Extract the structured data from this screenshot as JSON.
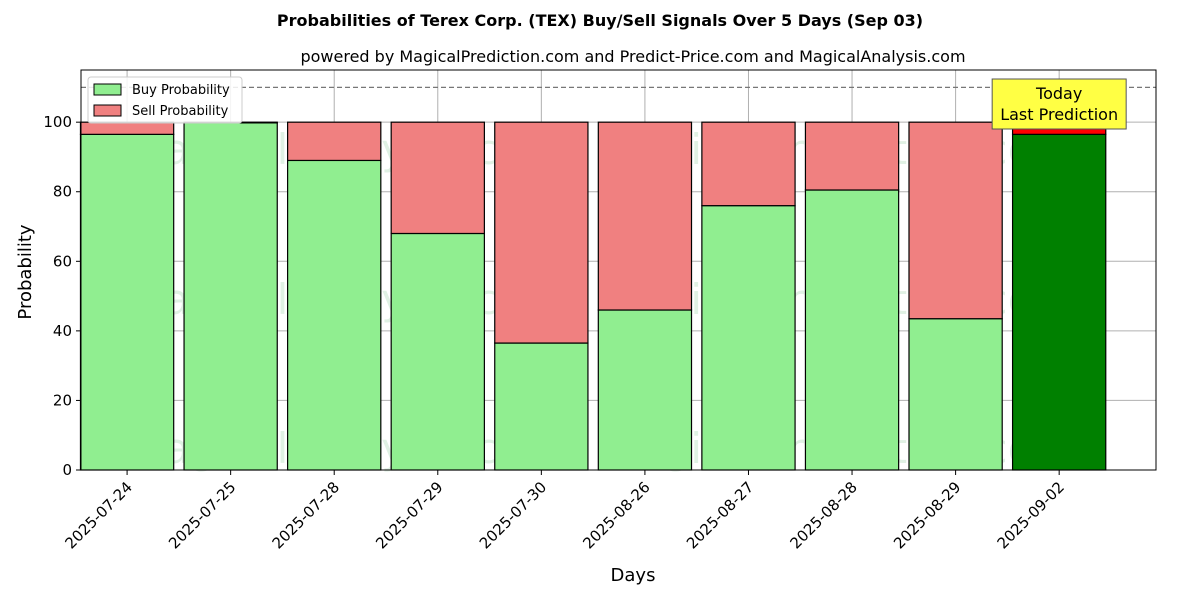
{
  "chart_data": {
    "type": "bar",
    "stacked": true,
    "title": "Probabilities of Terex Corp. (TEX) Buy/Sell Signals Over 5 Days (Sep 03)",
    "subtitle": "powered by MagicalPrediction.com and Predict-Price.com and MagicalAnalysis.com",
    "xlabel": "Days",
    "ylabel": "Probability",
    "ylim": [
      0,
      115
    ],
    "yticks": [
      0,
      20,
      40,
      60,
      80,
      100
    ],
    "grid": true,
    "reference_line": 110,
    "categories": [
      "2025-07-24",
      "2025-07-25",
      "2025-07-28",
      "2025-07-29",
      "2025-07-30",
      "2025-08-26",
      "2025-08-27",
      "2025-08-28",
      "2025-08-29",
      "2025-09-02"
    ],
    "series": [
      {
        "name": "Buy Probability",
        "values": [
          96.5,
          99.8,
          89,
          68,
          36.5,
          46,
          76,
          80.5,
          43.5,
          96.5
        ],
        "color": "#90ee90",
        "highlight_color": "#008000"
      },
      {
        "name": "Sell Probability",
        "values": [
          3.5,
          0.2,
          11,
          32,
          63.5,
          54,
          24,
          19.5,
          56.5,
          3.5
        ],
        "color": "#f08080",
        "highlight_color": "#ff0000"
      }
    ],
    "highlight_index": 9,
    "legend": {
      "position": "top-left",
      "entries": [
        "Buy Probability",
        "Sell Probability"
      ]
    },
    "annotation": {
      "line1": "Today",
      "line2": "Last Prediction",
      "color": "#ffff44"
    },
    "watermarks": [
      "MagicalAnalysis.com",
      "MagicalPrediction.com",
      "MagicalAnalysis.com",
      "MagicalPrediction.com",
      "MagicalAnalysis.com",
      "MagicalPrediction.com"
    ]
  }
}
